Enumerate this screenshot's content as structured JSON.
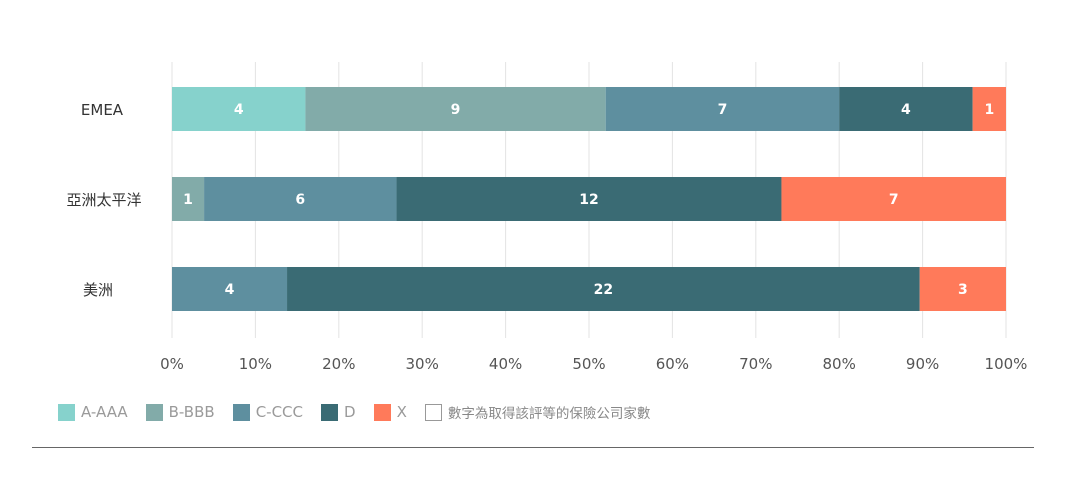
{
  "chart_data": {
    "type": "bar",
    "orientation": "horizontal",
    "stacked": "percent",
    "categories": [
      "EMEA",
      "亞洲太平洋",
      "美洲"
    ],
    "series": [
      {
        "name": "A-AAA",
        "color": "#86d2cc",
        "values": [
          4,
          0,
          0
        ]
      },
      {
        "name": "B-BBB",
        "color": "#82aba9",
        "values": [
          9,
          1,
          0
        ]
      },
      {
        "name": "C-CCC",
        "color": "#5e8f9f",
        "values": [
          7,
          6,
          4
        ]
      },
      {
        "name": "D",
        "color": "#3a6b74",
        "values": [
          4,
          12,
          22
        ]
      },
      {
        "name": "X",
        "color": "#ff7a5a",
        "values": [
          1,
          7,
          3
        ]
      }
    ],
    "x_ticks": [
      "0%",
      "10%",
      "20%",
      "30%",
      "40%",
      "50%",
      "60%",
      "70%",
      "80%",
      "90%",
      "100%"
    ],
    "xlim": [
      0,
      100
    ],
    "grid": true,
    "legend_position": "bottom-left",
    "note": "數字為取得該評等的保險公司家數"
  }
}
